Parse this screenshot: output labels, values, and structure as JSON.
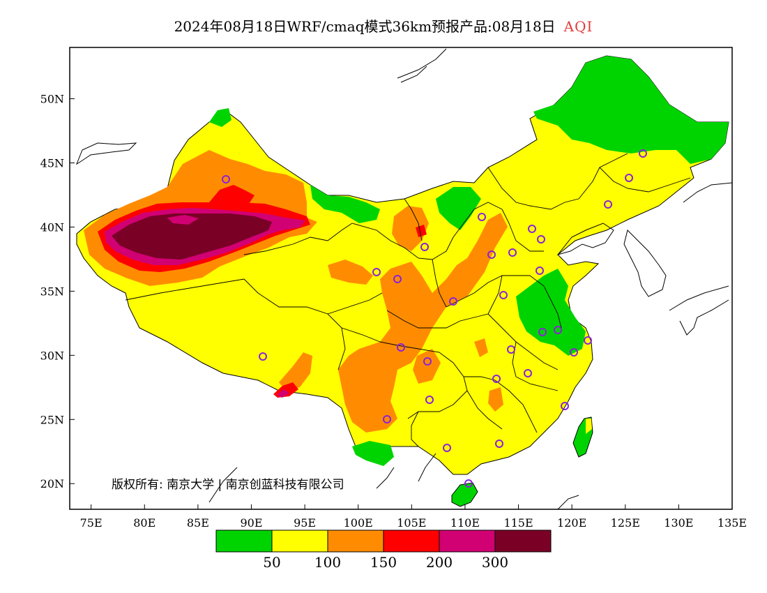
{
  "title": {
    "text": "2024年08月18日WRF/cmaq模式36km预报产品:08月18日",
    "product": "AQI",
    "product_color": "#e23a3a"
  },
  "map": {
    "lon_ticks": [
      "75E",
      "80E",
      "85E",
      "90E",
      "95E",
      "100E",
      "105E",
      "110E",
      "115E",
      "120E",
      "125E",
      "130E",
      "135E"
    ],
    "lat_ticks": [
      "50N",
      "45N",
      "40N",
      "35N",
      "30N",
      "25N",
      "20N"
    ],
    "lon_range": [
      73,
      135
    ],
    "lat_range": [
      18,
      54
    ],
    "station_marker_color": "#8b21d8"
  },
  "copyright": "版权所有: 南京大学 | 南京创蓝科技有限公司",
  "legend": {
    "colors": [
      "#00d400",
      "#ffff00",
      "#ff8c00",
      "#ff0000",
      "#d10073",
      "#7a0026"
    ],
    "labels": [
      "50",
      "100",
      "150",
      "200",
      "300"
    ]
  }
}
